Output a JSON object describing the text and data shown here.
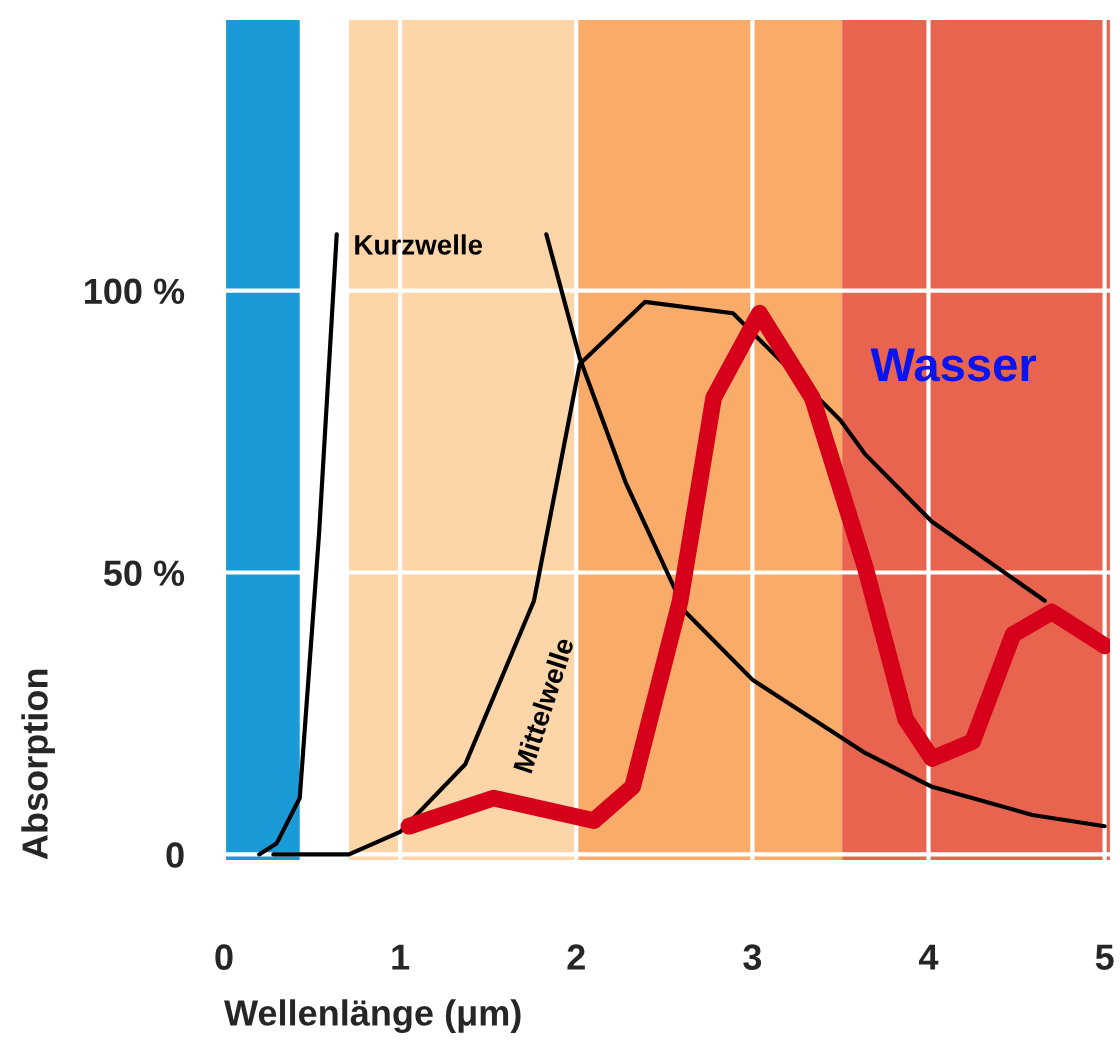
{
  "chart_data": {
    "type": "line",
    "xlabel": "Wellenlänge (μm)",
    "ylabel": "Absorption",
    "xlim": [
      0,
      5.03
    ],
    "ylim": [
      -1,
      148
    ],
    "xticks": [
      0,
      1,
      2,
      3,
      4,
      5
    ],
    "yticks": [
      0,
      {
        "value": 50,
        "label": "50 %"
      },
      {
        "value": 100,
        "label": "100 %"
      }
    ],
    "grid": true,
    "legend": false,
    "marker": "none",
    "line_style": "solid",
    "bands": [
      {
        "axis": "x",
        "from": 0,
        "to": 0.43,
        "color": "#1a9ad6"
      },
      {
        "axis": "x",
        "from": 0.71,
        "to": 2.0,
        "color": "#fcd5a8"
      },
      {
        "axis": "x",
        "from": 2.0,
        "to": 3.51,
        "color": "#f9ab6a"
      },
      {
        "axis": "x",
        "from": 3.51,
        "to": 5.03,
        "color": "#e8644f"
      }
    ],
    "series": [
      {
        "name": "Kurzwelle",
        "color": "#000000",
        "x": [
          0.2,
          0.3,
          0.43,
          0.54,
          0.64,
          1.2,
          1.83,
          2.02,
          2.28,
          2.62,
          3.0,
          3.64,
          4.02,
          4.59,
          5.0
        ],
        "values": [
          0,
          2,
          10,
          57,
          110,
          null,
          110,
          88,
          66,
          43,
          31,
          18,
          12,
          7,
          5
        ]
      },
      {
        "name": "Mittelwelle",
        "color": "#000000",
        "x": [
          0.28,
          0.71,
          1.0,
          1.37,
          1.76,
          2.02,
          2.39,
          2.89,
          3.5,
          3.64,
          4.02,
          4.66
        ],
        "values": [
          0,
          0,
          4,
          16,
          45,
          87,
          98,
          96,
          77,
          71,
          59,
          45
        ]
      },
      {
        "name": "Wasser",
        "color": "#d7001b",
        "x": [
          1.05,
          1.53,
          2.1,
          2.32,
          2.59,
          2.78,
          3.04,
          3.34,
          3.64,
          3.87,
          4.02,
          4.25,
          4.48,
          4.7,
          5.0
        ],
        "values": [
          5,
          10,
          6,
          12,
          45,
          81,
          96,
          81,
          51,
          24,
          17,
          20,
          39,
          43,
          37
        ]
      }
    ]
  }
}
